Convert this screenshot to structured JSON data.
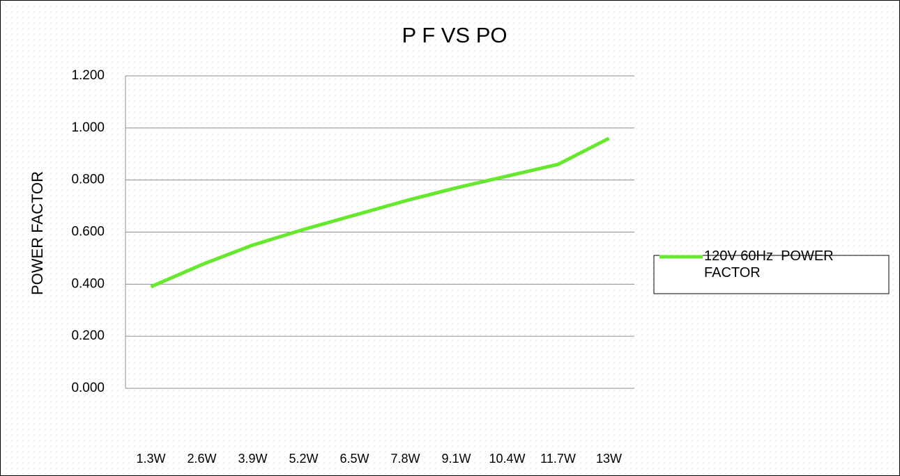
{
  "chart_data": {
    "type": "line",
    "title": "P F VS PO",
    "y_label": "POWER FACTOR",
    "categories": [
      "1.3W",
      "2.6W",
      "3.9W",
      "5.2W",
      "6.5W",
      "7.8W",
      "9.1W",
      "10.4W",
      "11.7W",
      "13W"
    ],
    "series": [
      {
        "name": "120V 60Hz  POWER FACTOR",
        "color": "#66e82e",
        "values": [
          0.39,
          0.475,
          0.55,
          0.61,
          0.665,
          0.72,
          0.77,
          0.815,
          0.86,
          0.96
        ]
      }
    ],
    "ylim": [
      0,
      1.2
    ],
    "yticks": [
      {
        "value": 0,
        "label": "0.000"
      },
      {
        "value": 0.2,
        "label": "0.200"
      },
      {
        "value": 0.4,
        "label": "0.400"
      },
      {
        "value": 0.6,
        "label": "0.600"
      },
      {
        "value": 0.8,
        "label": "0.800"
      },
      {
        "value": 1.0,
        "label": "1.000"
      },
      {
        "value": 1.2,
        "label": "1.200"
      }
    ],
    "grid": true,
    "legend": "right"
  }
}
